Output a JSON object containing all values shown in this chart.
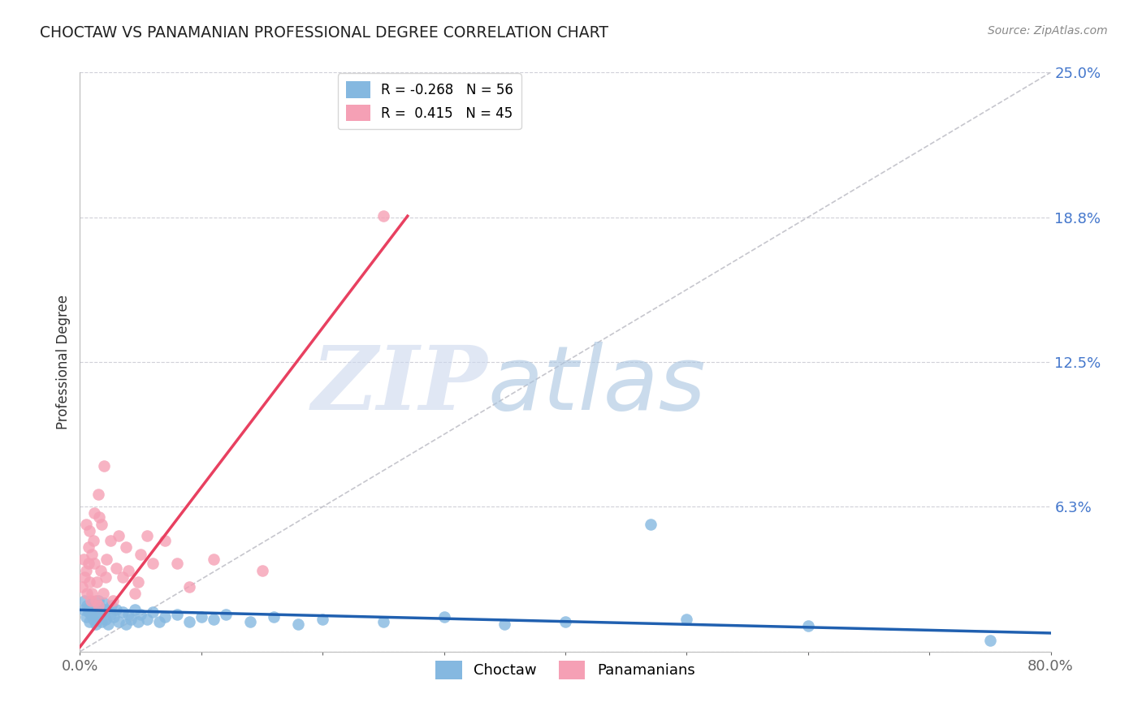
{
  "title": "CHOCTAW VS PANAMANIAN PROFESSIONAL DEGREE CORRELATION CHART",
  "source": "Source: ZipAtlas.com",
  "ylabel": "Professional Degree",
  "xlim": [
    0.0,
    0.8
  ],
  "ylim": [
    0.0,
    0.25
  ],
  "ytick_positions": [
    0.0,
    0.0625,
    0.125,
    0.1875,
    0.25
  ],
  "ytick_labels": [
    "",
    "6.3%",
    "12.5%",
    "18.8%",
    "25.0%"
  ],
  "xtick_positions": [
    0.0,
    0.1,
    0.2,
    0.3,
    0.4,
    0.5,
    0.6,
    0.7,
    0.8
  ],
  "xtick_labels": [
    "0.0%",
    "",
    "",
    "",
    "",
    "",
    "",
    "",
    "80.0%"
  ],
  "choctaw_R": -0.268,
  "choctaw_N": 56,
  "panama_R": 0.415,
  "panama_N": 45,
  "choctaw_color": "#85b8e0",
  "panama_color": "#f5a0b5",
  "choctaw_line_color": "#2060b0",
  "panama_line_color": "#e84060",
  "ref_line_color": "#c0c0c8",
  "grid_color": "#d0d0d8",
  "watermark_zip": "ZIP",
  "watermark_atlas": "atlas",
  "watermark_color_zip": "#ccd8ee",
  "watermark_color_atlas": "#a8c4e0",
  "figsize": [
    14.06,
    8.92
  ],
  "dpi": 100,
  "choctaw_x": [
    0.003,
    0.004,
    0.005,
    0.006,
    0.007,
    0.008,
    0.008,
    0.009,
    0.01,
    0.011,
    0.012,
    0.013,
    0.014,
    0.015,
    0.015,
    0.016,
    0.017,
    0.018,
    0.019,
    0.02,
    0.021,
    0.022,
    0.023,
    0.025,
    0.026,
    0.028,
    0.03,
    0.032,
    0.035,
    0.038,
    0.04,
    0.042,
    0.045,
    0.048,
    0.05,
    0.055,
    0.06,
    0.065,
    0.07,
    0.08,
    0.09,
    0.1,
    0.11,
    0.12,
    0.14,
    0.16,
    0.18,
    0.2,
    0.25,
    0.3,
    0.35,
    0.4,
    0.47,
    0.5,
    0.6,
    0.75
  ],
  "choctaw_y": [
    0.018,
    0.022,
    0.015,
    0.02,
    0.017,
    0.019,
    0.013,
    0.016,
    0.021,
    0.014,
    0.018,
    0.012,
    0.02,
    0.016,
    0.022,
    0.015,
    0.019,
    0.013,
    0.017,
    0.021,
    0.014,
    0.018,
    0.012,
    0.016,
    0.02,
    0.015,
    0.018,
    0.013,
    0.017,
    0.012,
    0.016,
    0.014,
    0.018,
    0.013,
    0.016,
    0.014,
    0.017,
    0.013,
    0.015,
    0.016,
    0.013,
    0.015,
    0.014,
    0.016,
    0.013,
    0.015,
    0.012,
    0.014,
    0.013,
    0.015,
    0.012,
    0.013,
    0.055,
    0.014,
    0.011,
    0.005
  ],
  "panama_x": [
    0.002,
    0.003,
    0.004,
    0.005,
    0.005,
    0.006,
    0.007,
    0.007,
    0.008,
    0.008,
    0.009,
    0.01,
    0.01,
    0.011,
    0.012,
    0.012,
    0.013,
    0.014,
    0.015,
    0.015,
    0.016,
    0.017,
    0.018,
    0.019,
    0.02,
    0.021,
    0.022,
    0.025,
    0.027,
    0.03,
    0.032,
    0.035,
    0.038,
    0.04,
    0.045,
    0.048,
    0.05,
    0.055,
    0.06,
    0.07,
    0.08,
    0.09,
    0.11,
    0.15,
    0.25
  ],
  "panama_y": [
    0.028,
    0.04,
    0.032,
    0.055,
    0.035,
    0.025,
    0.045,
    0.038,
    0.052,
    0.03,
    0.022,
    0.042,
    0.025,
    0.048,
    0.038,
    0.06,
    0.022,
    0.03,
    0.068,
    0.02,
    0.058,
    0.035,
    0.055,
    0.025,
    0.08,
    0.032,
    0.04,
    0.048,
    0.022,
    0.036,
    0.05,
    0.032,
    0.045,
    0.035,
    0.025,
    0.03,
    0.042,
    0.05,
    0.038,
    0.048,
    0.038,
    0.028,
    0.04,
    0.035,
    0.188
  ],
  "panama_line_x0": 0.0,
  "panama_line_y0": 0.002,
  "panama_line_x1": 0.27,
  "panama_line_y1": 0.188,
  "choctaw_line_x0": 0.0,
  "choctaw_line_y0": 0.018,
  "choctaw_line_x1": 0.8,
  "choctaw_line_y1": 0.008
}
